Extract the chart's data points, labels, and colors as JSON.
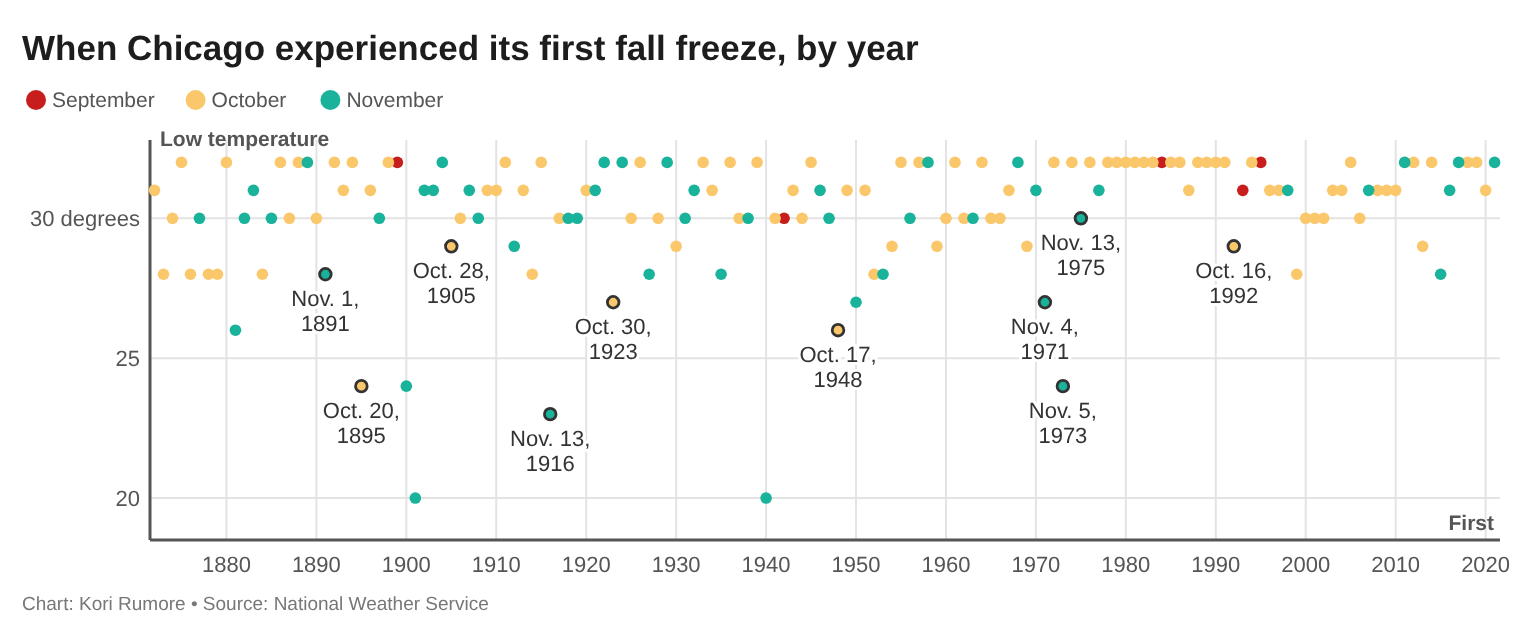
{
  "chart_data": {
    "type": "scatter",
    "title": "When Chicago experienced its first fall freeze, by year",
    "ylabel": "Low temperature",
    "xlabel": "First",
    "xlim": [
      1871.5,
      2021.6
    ],
    "xticks": [
      1880,
      1890,
      1900,
      1910,
      1920,
      1930,
      1940,
      1950,
      1960,
      1970,
      1980,
      1990,
      2000,
      2010,
      2020
    ],
    "ylim": [
      18.5,
      32.8
    ],
    "yticks": [
      20,
      25,
      {
        "value": 30,
        "label": "30 degrees"
      }
    ],
    "grid": true,
    "legend": "top left",
    "marker": "circle",
    "series": [
      {
        "name": "September",
        "color": "#c71e1d",
        "x": [
          1899,
          1942,
          1984,
          1993,
          1995
        ],
        "values": [
          32,
          30,
          32,
          31,
          32
        ]
      },
      {
        "name": "October",
        "color": "#fbc76b",
        "x": [
          1872,
          1873,
          1874,
          1875,
          1876,
          1878,
          1879,
          1880,
          1884,
          1886,
          1887,
          1888,
          1890,
          1892,
          1893,
          1894,
          1895,
          1896,
          1898,
          1905,
          1906,
          1909,
          1910,
          1911,
          1913,
          1914,
          1915,
          1917,
          1920,
          1923,
          1925,
          1926,
          1928,
          1930,
          1933,
          1934,
          1936,
          1937,
          1939,
          1941,
          1943,
          1944,
          1945,
          1948,
          1949,
          1951,
          1952,
          1954,
          1955,
          1957,
          1959,
          1960,
          1961,
          1962,
          1964,
          1965,
          1966,
          1967,
          1969,
          1972,
          1974,
          1976,
          1978,
          1979,
          1980,
          1981,
          1982,
          1983,
          1985,
          1986,
          1987,
          1988,
          1989,
          1990,
          1991,
          1992,
          1994,
          1996,
          1997,
          1999,
          2000,
          2001,
          2002,
          2003,
          2004,
          2005,
          2006,
          2008,
          2009,
          2010,
          2012,
          2013,
          2014,
          2018,
          2019,
          2020
        ],
        "values": [
          31,
          28,
          30,
          32,
          28,
          28,
          28,
          32,
          28,
          32,
          30,
          32,
          30,
          32,
          31,
          32,
          24,
          31,
          32,
          29,
          30,
          31,
          31,
          32,
          31,
          28,
          32,
          30,
          31,
          27,
          30,
          32,
          30,
          29,
          32,
          31,
          32,
          30,
          32,
          30,
          31,
          30,
          32,
          26,
          31,
          31,
          28,
          29,
          32,
          32,
          29,
          30,
          32,
          30,
          32,
          30,
          30,
          31,
          29,
          32,
          32,
          32,
          32,
          32,
          32,
          32,
          32,
          32,
          32,
          32,
          31,
          32,
          32,
          32,
          32,
          29,
          32,
          31,
          31,
          28,
          30,
          30,
          30,
          31,
          31,
          32,
          30,
          31,
          31,
          31,
          32,
          29,
          32,
          32,
          32,
          31
        ]
      },
      {
        "name": "November",
        "color": "#18b39a",
        "x": [
          1877,
          1881,
          1882,
          1883,
          1885,
          1889,
          1891,
          1897,
          1900,
          1901,
          1902,
          1903,
          1904,
          1907,
          1908,
          1912,
          1916,
          1918,
          1919,
          1921,
          1922,
          1924,
          1927,
          1929,
          1931,
          1932,
          1935,
          1938,
          1940,
          1946,
          1947,
          1950,
          1953,
          1956,
          1958,
          1963,
          1968,
          1970,
          1971,
          1973,
          1975,
          1977,
          1998,
          2007,
          2011,
          2015,
          2016,
          2017,
          2021
        ],
        "values": [
          30,
          26,
          30,
          31,
          30,
          32,
          28,
          30,
          24,
          20,
          31,
          31,
          32,
          31,
          30,
          29,
          23,
          30,
          30,
          31,
          32,
          32,
          28,
          32,
          30,
          31,
          28,
          30,
          20,
          31,
          30,
          27,
          28,
          30,
          32,
          30,
          32,
          31,
          27,
          24,
          30,
          31,
          31,
          31,
          32,
          28,
          31,
          32,
          32
        ]
      }
    ],
    "annotations": [
      {
        "text": "Nov. 1,\n1891",
        "x": 1891,
        "y": 28
      },
      {
        "text": "Oct. 20,\n1895",
        "x": 1895,
        "y": 24
      },
      {
        "text": "Oct. 28,\n1905",
        "x": 1905,
        "y": 29
      },
      {
        "text": "Nov. 13,\n1916",
        "x": 1916,
        "y": 23
      },
      {
        "text": "Oct. 30,\n1923",
        "x": 1923,
        "y": 27
      },
      {
        "text": "Oct. 17,\n1948",
        "x": 1948,
        "y": 26
      },
      {
        "text": "Nov. 4,\n1971",
        "x": 1971,
        "y": 27
      },
      {
        "text": "Nov. 5,\n1973",
        "x": 1973,
        "y": 24
      },
      {
        "text": "Nov. 13,\n1975",
        "x": 1975,
        "y": 30
      },
      {
        "text": "Oct. 16,\n1992",
        "x": 1992,
        "y": 29
      },
      "Chart: Kori Rumore • Source: National Weather Service"
    ]
  }
}
